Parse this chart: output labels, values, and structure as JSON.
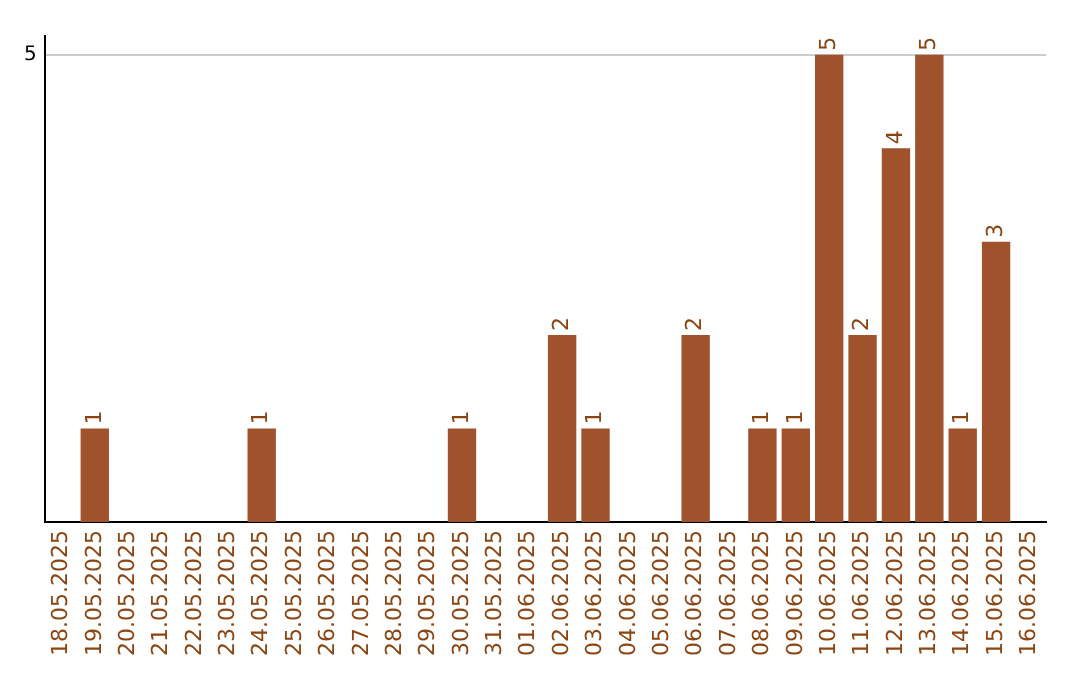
{
  "chart_data": {
    "type": "bar",
    "categories": [
      "18.05.2025",
      "19.05.2025",
      "20.05.2025",
      "21.05.2025",
      "22.05.2025",
      "23.05.2025",
      "24.05.2025",
      "25.05.2025",
      "26.05.2025",
      "27.05.2025",
      "28.05.2025",
      "29.05.2025",
      "30.05.2025",
      "31.05.2025",
      "01.06.2025",
      "02.06.2025",
      "03.06.2025",
      "04.06.2025",
      "05.06.2025",
      "06.06.2025",
      "07.06.2025",
      "08.06.2025",
      "09.06.2025",
      "10.06.2025",
      "11.06.2025",
      "12.06.2025",
      "13.06.2025",
      "14.06.2025",
      "15.06.2025",
      "16.06.2025"
    ],
    "values": [
      0,
      1,
      0,
      0,
      0,
      0,
      1,
      0,
      0,
      0,
      0,
      0,
      1,
      0,
      0,
      2,
      1,
      0,
      0,
      2,
      0,
      1,
      1,
      5,
      2,
      4,
      5,
      1,
      3,
      0
    ],
    "value_labels": [
      null,
      "1",
      null,
      null,
      null,
      null,
      "1",
      null,
      null,
      null,
      null,
      null,
      "1",
      null,
      null,
      "2",
      "1",
      null,
      null,
      "2",
      null,
      "1",
      "1",
      "5",
      "2",
      "4",
      "5",
      "1",
      "3",
      null
    ],
    "color": "#a0522d",
    "ylim": [
      0,
      5.2
    ],
    "yticks": [
      5
    ],
    "grid": "y",
    "legend": false
  }
}
